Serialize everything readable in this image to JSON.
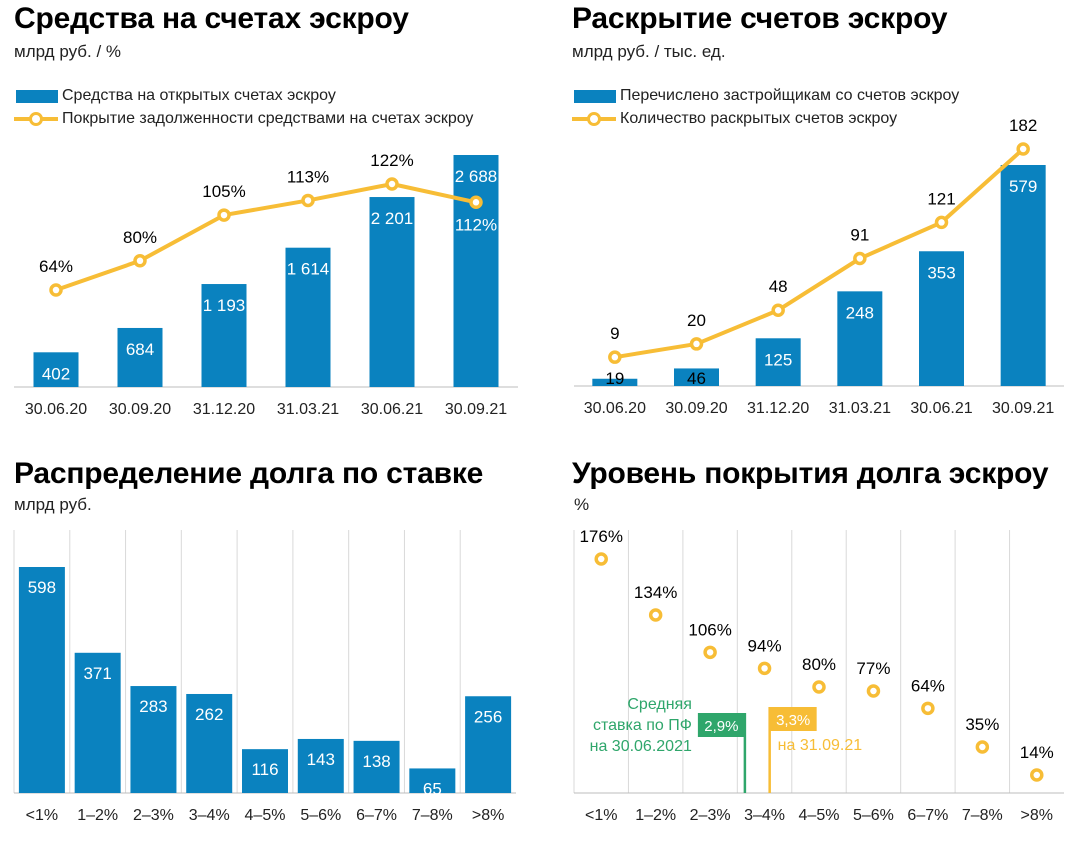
{
  "colors": {
    "bar": "#0a82bf",
    "line": "#f7bd36",
    "green": "#2fa66b",
    "gridline": "#d9d9d9"
  },
  "chart_data": [
    {
      "type": "bar+line",
      "title": "Средства на счетах эскроу",
      "subtitle": "млрд руб. / %",
      "categories": [
        "30.06.20",
        "30.09.20",
        "31.12.20",
        "31.03.21",
        "30.06.21",
        "30.09.21"
      ],
      "series": [
        {
          "name": "Средства на открытых счетах эскроу",
          "kind": "bar",
          "values": [
            402,
            684,
            1193,
            1614,
            2201,
            2688
          ],
          "labels": [
            "402",
            "684",
            "1 193",
            "1 614",
            "2 201",
            "2 688"
          ]
        },
        {
          "name": "Покрытие задолженности средствами на счетах эскроу",
          "kind": "line",
          "values": [
            64,
            80,
            105,
            113,
            122,
            112
          ],
          "labels": [
            "64%",
            "80%",
            "105%",
            "113%",
            "122%",
            "112%"
          ]
        }
      ]
    },
    {
      "type": "bar+line",
      "title": "Раскрытие счетов эскроу",
      "subtitle": "млрд руб. / тыс. ед.",
      "categories": [
        "30.06.20",
        "30.09.20",
        "31.12.20",
        "31.03.21",
        "30.06.21",
        "30.09.21"
      ],
      "series": [
        {
          "name": "Перечислено застройщикам со счетов эскроу",
          "kind": "bar",
          "values": [
            19,
            46,
            125,
            248,
            353,
            579
          ],
          "labels": [
            "19",
            "46",
            "125",
            "248",
            "353",
            "579"
          ]
        },
        {
          "name": "Количество раскрытых счетов эскроу",
          "kind": "line",
          "values": [
            9,
            20,
            48,
            91,
            121,
            182
          ],
          "labels": [
            "9",
            "20",
            "48",
            "91",
            "121",
            "182"
          ]
        }
      ]
    },
    {
      "type": "bar",
      "title": "Распределение долга по ставке",
      "subtitle": "млрд руб.",
      "categories": [
        "<1%",
        "1–2%",
        "2–3%",
        "3–4%",
        "4–5%",
        "5–6%",
        "6–7%",
        "7–8%",
        ">8%"
      ],
      "values": [
        598,
        371,
        283,
        262,
        116,
        143,
        138,
        65,
        256
      ],
      "labels": [
        "598",
        "371",
        "283",
        "262",
        "116",
        "143",
        "138",
        "65",
        "256"
      ]
    },
    {
      "type": "scatter",
      "title": "Уровень покрытия долга эскроу",
      "subtitle": "%",
      "categories": [
        "<1%",
        "1–2%",
        "2–3%",
        "3–4%",
        "4–5%",
        "5–6%",
        "6–7%",
        "7–8%",
        ">8%"
      ],
      "values": [
        176,
        134,
        106,
        94,
        80,
        77,
        64,
        35,
        14
      ],
      "labels": [
        "176%",
        "134%",
        "106%",
        "94%",
        "80%",
        "77%",
        "64%",
        "35%",
        "14%"
      ],
      "markers": [
        {
          "label": "2,9%",
          "value": 2.9,
          "text": [
            "Средняя",
            "ставка по ПФ",
            "на 30.06.2021"
          ],
          "color": "#2fa66b"
        },
        {
          "label": "3,3%",
          "value": 3.3,
          "text": [
            "на 31.09.21"
          ],
          "color": "#f7bd36"
        }
      ]
    }
  ]
}
